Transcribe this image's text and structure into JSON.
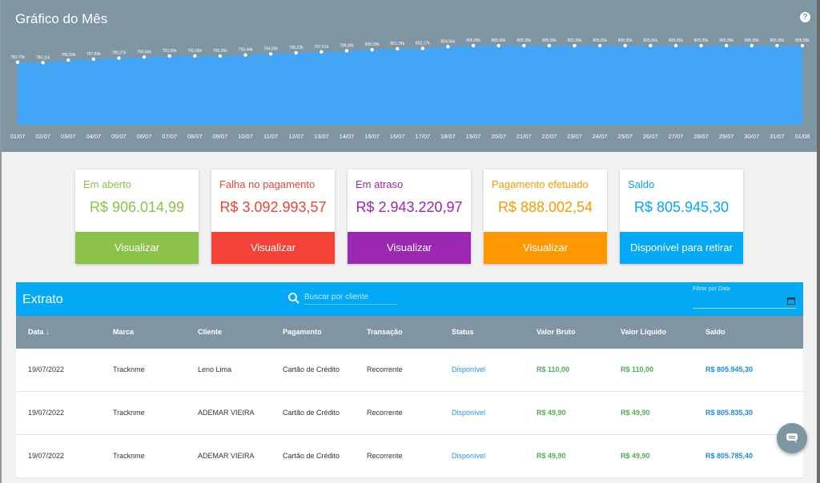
{
  "chart": {
    "title": "Gráfico do Mês",
    "help_icon": "help-circle-icon"
  },
  "chart_data": {
    "type": "area",
    "x": [
      "01/07",
      "02/07",
      "03/07",
      "04/07",
      "05/07",
      "06/07",
      "07/07",
      "08/07",
      "09/07",
      "10/07",
      "11/07",
      "12/07",
      "13/07",
      "14/07",
      "15/07",
      "16/07",
      "17/07",
      "18/07",
      "19/07",
      "20/07",
      "21/07",
      "22/07",
      "23/07",
      "24/07",
      "25/07",
      "26/07",
      "27/07",
      "28/07",
      "29/07",
      "30/07",
      "31/07",
      "01/08"
    ],
    "point_labels": [
      "783,72k",
      "783,11k",
      "786,50k",
      "787,89k",
      "789,27k",
      "790,66k",
      "792,05k",
      "792,05k",
      "792,05k",
      "793,44k",
      "794,83k",
      "796,22k",
      "797,61k",
      "799,00k",
      "800,39k",
      "801,78k",
      "802,17k",
      "804,56k",
      "805,95k",
      "805,95k",
      "805,95k",
      "805,95k",
      "805,95k",
      "805,95k",
      "805,95k",
      "805,95k",
      "805,95k",
      "805,95k",
      "805,95k",
      "805,95k",
      "805,95k",
      "805,95k"
    ],
    "values": [
      783720,
      783110,
      786500,
      787890,
      789270,
      790660,
      792050,
      792050,
      792050,
      793440,
      794830,
      796220,
      797610,
      799000,
      800390,
      801780,
      802170,
      804560,
      805950,
      805950,
      805950,
      805950,
      805950,
      805950,
      805950,
      805950,
      805950,
      805950,
      805950,
      805950,
      805950,
      805950
    ],
    "fill_color": "#42a5f5",
    "title": "Gráfico do Mês"
  },
  "cards": [
    {
      "title": "Em aberto",
      "value": "R$ 906.014,99",
      "button": "Visualizar",
      "color": "#8bc34a"
    },
    {
      "title": "Falha no pagamento",
      "value": "R$ 3.092.993,57",
      "button": "Visualizar",
      "color": "#f44336"
    },
    {
      "title": "Em atraso",
      "value": "R$ 2.943.220,97",
      "button": "Visualizar",
      "color": "#9c27b0"
    },
    {
      "title": "Pagamento efetuado",
      "value": "R$ 888.002,54",
      "button": "Visualizar",
      "color": "#ff9800"
    },
    {
      "title": "Saldo",
      "value": "R$ 805.945,30",
      "button": "Disponível para retirar",
      "color": "#03a9f4"
    }
  ],
  "extrato": {
    "title": "Extrato",
    "search_placeholder": "Buscar por cliente",
    "date_filter_label": "Filtrar por Data",
    "columns": [
      "Data ↓",
      "Marca",
      "Cliente",
      "Pagamento",
      "Transação",
      "Status",
      "Valor Bruto",
      "Valor Líquido",
      "Saldo"
    ],
    "rows": [
      [
        "19/07/2022",
        "Tracknme",
        "Leno Lima",
        "Cartão de Crédito",
        "Recorrente",
        "Disponível",
        "R$ 110,00",
        "R$ 110,00",
        "R$ 805.945,30"
      ],
      [
        "19/07/2022",
        "Tracknme",
        "ADEMAR VIEIRA",
        "Cartão de Crédito",
        "Recorrente",
        "Disponível",
        "R$ 49,90",
        "R$ 49,90",
        "R$ 805.835,30"
      ],
      [
        "19/07/2022",
        "Tracknme",
        "ADEMAR VIEIRA",
        "Cartão de Crédito",
        "Recorrente",
        "Disponível",
        "R$ 49,90",
        "R$ 49,90",
        "R$ 805.785,40"
      ]
    ]
  },
  "colors": {
    "header_gray": "#7f95a2",
    "extrato_blue": "#03a9f4",
    "status_blue": "#2196f3",
    "money_green": "#4caf50",
    "saldo_blue": "#1e88e5"
  },
  "icons": {
    "search": "search-icon",
    "calendar": "calendar-icon",
    "chat": "chat-icon"
  }
}
